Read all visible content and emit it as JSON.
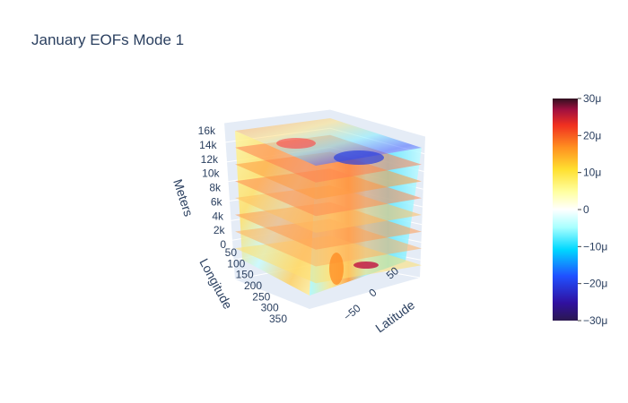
{
  "title": "January EOFs Mode 1",
  "chart_data": {
    "type": "heatmap",
    "subtype": "3d-volume",
    "title": "January EOFs Mode 1",
    "axes": {
      "x": {
        "label": "Latitude",
        "ticks": [
          "−50",
          "0",
          "50"
        ],
        "range": [
          -90,
          90
        ]
      },
      "y": {
        "label": "Longitude",
        "ticks": [
          "50",
          "100",
          "150",
          "200",
          "250",
          "300",
          "350"
        ],
        "range": [
          0,
          360
        ]
      },
      "z": {
        "label": "Meters",
        "ticks": [
          "0",
          "2k",
          "4k",
          "6k",
          "8k",
          "10k",
          "12k",
          "14k",
          "16k"
        ],
        "range": [
          0,
          16000
        ]
      }
    },
    "colorbar": {
      "ticks": [
        "30μ",
        "20μ",
        "10μ",
        "0",
        "−10μ",
        "−20μ",
        "−30μ"
      ],
      "range": [
        -3e-05,
        3e-05
      ],
      "colorscale": [
        "#ffffff",
        "#a0ffff",
        "#00e5ff",
        "#1e8cff",
        "#2020e0",
        "#2a1080",
        "#2b1850",
        "#ffffff",
        "#ffffa0",
        "#ffe030",
        "#ff9020",
        "#f03020",
        "#b01040",
        "#301020"
      ]
    },
    "levels_m": [
      2000,
      4000,
      6000,
      8000,
      10000,
      12000,
      14000,
      16000
    ],
    "grid": true,
    "background": "#e5ecf6"
  }
}
